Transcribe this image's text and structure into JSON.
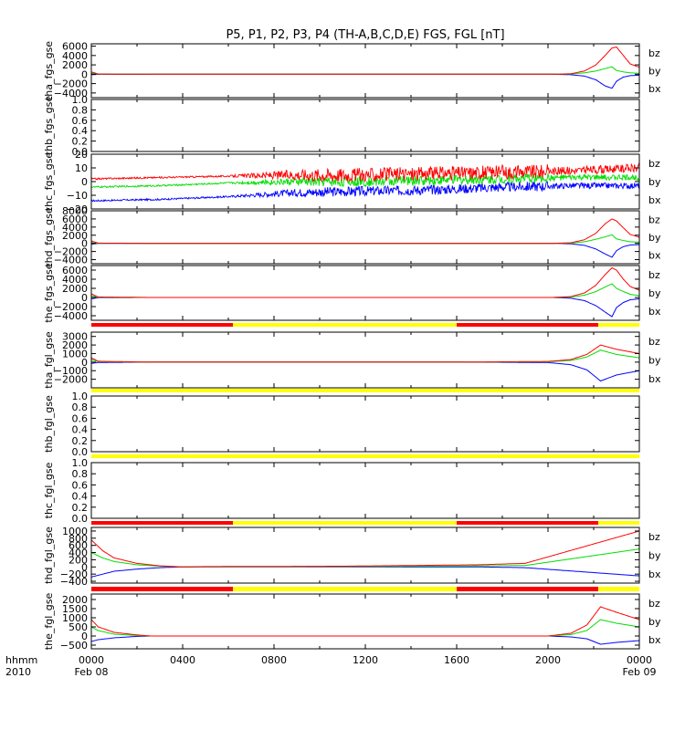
{
  "title": "P5, P1, P2, P3, P4 (TH-A,B,C,D,E) FGS, FGL [nT]",
  "colors": {
    "bz": "#ff0000",
    "by": "#00dd00",
    "bx": "#0000ff",
    "bar_red": "#ff0000",
    "bar_yellow": "#ffff00"
  },
  "chart_data": [
    {
      "type": "line",
      "ylabel": "tha_fgs_gse",
      "ylim": [
        -5000,
        6500
      ],
      "yticks": [
        6000,
        4000,
        2000,
        0,
        -2000,
        -4000
      ],
      "ytick_labels": [
        "6000",
        "4000",
        "2000",
        "0",
        "−2000",
        "−4000"
      ],
      "legend": [
        "bz",
        "by",
        "bx"
      ],
      "series": [
        {
          "name": "bz",
          "x": [
            0,
            0.3,
            2.6,
            20.2,
            21.0,
            21.6,
            22.1,
            22.5,
            22.8,
            23.0,
            23.3,
            23.6,
            24
          ],
          "values": [
            500,
            50,
            0,
            0,
            100,
            700,
            2000,
            4000,
            5600,
            5800,
            4000,
            2200,
            1500
          ]
        },
        {
          "name": "by",
          "x": [
            0,
            0.3,
            2.6,
            20.2,
            21.0,
            21.6,
            22.1,
            22.5,
            22.8,
            23.0,
            23.3,
            23.6,
            24
          ],
          "values": [
            200,
            20,
            0,
            0,
            50,
            300,
            700,
            1200,
            1600,
            800,
            500,
            300,
            200
          ]
        },
        {
          "name": "bx",
          "x": [
            0,
            0.3,
            2.6,
            20.2,
            21.0,
            21.6,
            22.1,
            22.5,
            22.8,
            23.0,
            23.3,
            23.6,
            24
          ],
          "values": [
            -100,
            -20,
            0,
            0,
            -100,
            -400,
            -1200,
            -2500,
            -3000,
            -1500,
            -600,
            -300,
            -200
          ]
        }
      ]
    },
    {
      "type": "line",
      "ylabel": "thb_fgs_gse",
      "ylim": [
        0,
        1.0
      ],
      "yticks": [
        1.0,
        0.8,
        0.6,
        0.4,
        0.2,
        0.0
      ],
      "ytick_labels": [
        "1.0",
        "0.8",
        "0.6",
        "0.4",
        "0.2",
        "0.0"
      ],
      "legend": [],
      "series": []
    },
    {
      "type": "line",
      "ylabel": "thc_fgs_gse",
      "ylim": [
        -20,
        20
      ],
      "yticks": [
        20,
        10,
        0,
        -10,
        -20
      ],
      "ytick_labels": [
        "20",
        "10",
        "0",
        "−10",
        "−20"
      ],
      "legend": [
        "bz",
        "by",
        "bx"
      ],
      "noise_start_hour": 6.0,
      "noise_peak_hour": 10.0,
      "series": [
        {
          "name": "bz",
          "x": [
            0,
            3,
            6,
            9,
            12,
            15,
            18,
            21,
            24
          ],
          "values": [
            2,
            3,
            4,
            5,
            5,
            6,
            7,
            8,
            10
          ]
        },
        {
          "name": "by",
          "x": [
            0,
            3,
            6,
            9,
            12,
            15,
            18,
            21,
            24
          ],
          "values": [
            -4,
            -3,
            -1,
            0,
            0,
            1,
            2,
            3,
            3
          ]
        },
        {
          "name": "bx",
          "x": [
            0,
            3,
            6,
            9,
            12,
            15,
            18,
            21,
            24
          ],
          "values": [
            -14,
            -13,
            -11,
            -8,
            -7,
            -6,
            -4,
            -3,
            -3
          ]
        }
      ]
    },
    {
      "type": "line",
      "ylabel": "thd_fgs_gse",
      "ylim": [
        -5000,
        8000
      ],
      "yticks": [
        8000,
        6000,
        4000,
        2000,
        0,
        -2000,
        -4000
      ],
      "ytick_labels": [
        "8000",
        "6000",
        "4000",
        "2000",
        "0",
        "−2000",
        "−4000"
      ],
      "legend": [
        "bz",
        "by",
        "bx"
      ],
      "series": [
        {
          "name": "bz",
          "x": [
            0,
            0.3,
            2.6,
            20.2,
            21.0,
            21.6,
            22.1,
            22.5,
            22.8,
            23.0,
            23.3,
            23.6,
            24
          ],
          "values": [
            600,
            60,
            0,
            0,
            150,
            900,
            2500,
            4800,
            6000,
            5500,
            3800,
            2200,
            1500
          ]
        },
        {
          "name": "by",
          "x": [
            0,
            0.3,
            2.6,
            20.2,
            21.0,
            21.6,
            22.1,
            22.5,
            22.8,
            23.0,
            23.3,
            23.6,
            24
          ],
          "values": [
            200,
            20,
            0,
            0,
            60,
            400,
            1000,
            1600,
            2100,
            1100,
            700,
            400,
            300
          ]
        },
        {
          "name": "bx",
          "x": [
            0,
            0.3,
            2.6,
            20.2,
            21.0,
            21.6,
            22.1,
            22.5,
            22.8,
            23.0,
            23.3,
            23.6,
            24
          ],
          "values": [
            -200,
            -20,
            0,
            0,
            -100,
            -500,
            -1400,
            -2600,
            -3400,
            -1800,
            -800,
            -400,
            -300
          ]
        }
      ]
    },
    {
      "type": "line",
      "ylabel": "the_fgs_gse",
      "ylim": [
        -5000,
        7000
      ],
      "yticks": [
        6000,
        4000,
        2000,
        0,
        -2000,
        -4000
      ],
      "ytick_labels": [
        "6000",
        "4000",
        "2000",
        "0",
        "−2000",
        "−4000"
      ],
      "legend": [
        "bz",
        "by",
        "bx"
      ],
      "series": [
        {
          "name": "bz",
          "x": [
            0,
            0.3,
            2.6,
            20.2,
            21.0,
            21.6,
            22.1,
            22.5,
            22.8,
            23.0,
            23.3,
            23.6,
            24
          ],
          "values": [
            800,
            100,
            0,
            0,
            200,
            1000,
            2700,
            5000,
            6500,
            6000,
            4000,
            2400,
            1600
          ]
        },
        {
          "name": "by",
          "x": [
            0,
            0.3,
            2.6,
            20.2,
            21.0,
            21.6,
            22.1,
            22.5,
            22.8,
            23.0,
            23.3,
            23.6,
            24
          ],
          "values": [
            400,
            50,
            0,
            0,
            100,
            500,
            1300,
            2300,
            3000,
            2000,
            1300,
            700,
            400
          ]
        },
        {
          "name": "bx",
          "x": [
            0,
            0.3,
            2.6,
            20.2,
            21.0,
            21.6,
            22.1,
            22.5,
            22.8,
            23.0,
            23.3,
            23.6,
            24
          ],
          "values": [
            -300,
            -30,
            0,
            0,
            -150,
            -700,
            -1800,
            -3200,
            -4200,
            -2200,
            -1100,
            -500,
            -300
          ]
        }
      ]
    },
    {
      "type": "line",
      "ylabel": "tha_fgl_gse",
      "ylim": [
        -3000,
        3500
      ],
      "yticks": [
        3000,
        2000,
        1000,
        0,
        -1000,
        -2000
      ],
      "ytick_labels": [
        "3000",
        "2000",
        "1000",
        "0",
        "−1000",
        "−2000"
      ],
      "legend": [
        "bz",
        "by",
        "bx"
      ],
      "series": [
        {
          "name": "bz",
          "x": [
            0,
            0.3,
            2.6,
            16.3,
            20.0,
            21.0,
            21.7,
            22.3,
            23.0,
            24
          ],
          "values": [
            500,
            100,
            0,
            0,
            80,
            300,
            900,
            2000,
            1500,
            1000
          ]
        },
        {
          "name": "by",
          "x": [
            0,
            0.3,
            2.6,
            16.3,
            20.0,
            21.0,
            21.7,
            22.3,
            23.0,
            24
          ],
          "values": [
            300,
            60,
            0,
            0,
            40,
            200,
            600,
            1400,
            900,
            500
          ]
        },
        {
          "name": "bx",
          "x": [
            0,
            0.3,
            2.6,
            16.3,
            20.0,
            21.0,
            21.7,
            22.3,
            23.0,
            24
          ],
          "values": [
            -150,
            -40,
            0,
            0,
            -50,
            -300,
            -900,
            -2200,
            -1500,
            -1000
          ]
        }
      ]
    },
    {
      "type": "line",
      "ylabel": "thb_fgl_gse",
      "ylim": [
        0,
        1.0
      ],
      "yticks": [
        1.0,
        0.8,
        0.6,
        0.4,
        0.2,
        0.0
      ],
      "ytick_labels": [
        "1.0",
        "0.8",
        "0.6",
        "0.4",
        "0.2",
        "0.0"
      ],
      "legend": [],
      "series": []
    },
    {
      "type": "line",
      "ylabel": "thc_fgl_gse",
      "ylim": [
        0,
        1.0
      ],
      "yticks": [
        1.0,
        0.8,
        0.6,
        0.4,
        0.2,
        0.0
      ],
      "ytick_labels": [
        "1.0",
        "0.8",
        "0.6",
        "0.4",
        "0.2",
        "0.0"
      ],
      "legend": [],
      "series": []
    },
    {
      "type": "line",
      "ylabel": "thd_fgl_gse",
      "ylim": [
        -450,
        1100
      ],
      "yticks": [
        1000,
        800,
        600,
        400,
        200,
        0,
        -200,
        -400
      ],
      "ytick_labels": [
        "1000",
        "800",
        "600",
        "400",
        "200",
        "0",
        "−200",
        "−400"
      ],
      "legend": [
        "bz",
        "by",
        "bx"
      ],
      "series": [
        {
          "name": "bz",
          "x": [
            0,
            0.5,
            1.0,
            2.0,
            3.0,
            4.0,
            5.0,
            11.0,
            17.0,
            19.0,
            24
          ],
          "values": [
            750,
            450,
            250,
            100,
            30,
            0,
            10,
            20,
            60,
            100,
            1000
          ]
        },
        {
          "name": "by",
          "x": [
            0,
            0.5,
            1.0,
            2.0,
            3.0,
            4.0,
            5.0,
            11.0,
            17.0,
            19.0,
            24
          ],
          "values": [
            400,
            250,
            150,
            60,
            20,
            0,
            5,
            10,
            30,
            40,
            500
          ]
        },
        {
          "name": "bx",
          "x": [
            0,
            0.5,
            1.0,
            2.0,
            3.0,
            4.0,
            5.0,
            11.0,
            17.0,
            19.0,
            24
          ],
          "values": [
            -280,
            -200,
            -120,
            -60,
            -20,
            0,
            0,
            0,
            0,
            -20,
            -250
          ]
        }
      ]
    },
    {
      "type": "line",
      "ylabel": "the_fgl_gse",
      "ylim": [
        -700,
        2300
      ],
      "yticks": [
        2000,
        1500,
        1000,
        500,
        0,
        -500
      ],
      "ytick_labels": [
        "2000",
        "1500",
        "1000",
        "500",
        "0",
        "−500"
      ],
      "legend": [
        "bz",
        "by",
        "bx"
      ],
      "series": [
        {
          "name": "bz",
          "x": [
            0,
            0.3,
            1.0,
            2.0,
            2.6,
            20.0,
            21.0,
            21.7,
            22.3,
            23.0,
            24
          ],
          "values": [
            900,
            500,
            200,
            60,
            0,
            0,
            150,
            600,
            1600,
            1300,
            900
          ]
        },
        {
          "name": "by",
          "x": [
            0,
            0.3,
            1.0,
            2.0,
            2.6,
            20.0,
            21.0,
            21.7,
            22.3,
            23.0,
            24
          ],
          "values": [
            500,
            300,
            100,
            30,
            0,
            0,
            80,
            300,
            900,
            700,
            500
          ]
        },
        {
          "name": "bx",
          "x": [
            0,
            0.3,
            1.0,
            2.0,
            2.6,
            20.0,
            21.0,
            21.7,
            22.3,
            23.0,
            24
          ],
          "values": [
            -300,
            -200,
            -100,
            -20,
            0,
            0,
            -50,
            -150,
            -450,
            -350,
            -250
          ]
        }
      ]
    }
  ],
  "status_bars": [
    {
      "segments": [
        {
          "from": 0,
          "to": 6.2,
          "color": "red"
        },
        {
          "from": 6.2,
          "to": 16.0,
          "color": "yellow"
        },
        {
          "from": 16.0,
          "to": 22.2,
          "color": "red"
        },
        {
          "from": 22.2,
          "to": 24,
          "color": "yellow"
        }
      ]
    },
    {
      "segments": [
        {
          "from": 0,
          "to": 24,
          "color": "yellow"
        }
      ]
    },
    {
      "segments": [
        {
          "from": 0,
          "to": 24,
          "color": "yellow"
        }
      ]
    },
    {
      "segments": [
        {
          "from": 0,
          "to": 6.2,
          "color": "red"
        },
        {
          "from": 6.2,
          "to": 16.0,
          "color": "yellow"
        },
        {
          "from": 16.0,
          "to": 22.2,
          "color": "red"
        },
        {
          "from": 22.2,
          "to": 24,
          "color": "yellow"
        }
      ]
    },
    {
      "segments": [
        {
          "from": 0,
          "to": 6.2,
          "color": "red"
        },
        {
          "from": 6.2,
          "to": 16.0,
          "color": "yellow"
        },
        {
          "from": 16.0,
          "to": 22.2,
          "color": "red"
        },
        {
          "from": 22.2,
          "to": 24,
          "color": "yellow"
        }
      ]
    }
  ],
  "x_axis": {
    "row_label_1": "hhmm",
    "row_label_2": "2010",
    "ticks": [
      {
        "hour": 0,
        "label": "0000",
        "sublabel": "Feb 08"
      },
      {
        "hour": 4,
        "label": "0400",
        "sublabel": ""
      },
      {
        "hour": 8,
        "label": "0800",
        "sublabel": ""
      },
      {
        "hour": 12,
        "label": "1200",
        "sublabel": ""
      },
      {
        "hour": 16,
        "label": "1600",
        "sublabel": ""
      },
      {
        "hour": 20,
        "label": "2000",
        "sublabel": ""
      },
      {
        "hour": 24,
        "label": "0000",
        "sublabel": "Feb 09"
      }
    ],
    "range_hours": [
      0,
      24
    ]
  }
}
